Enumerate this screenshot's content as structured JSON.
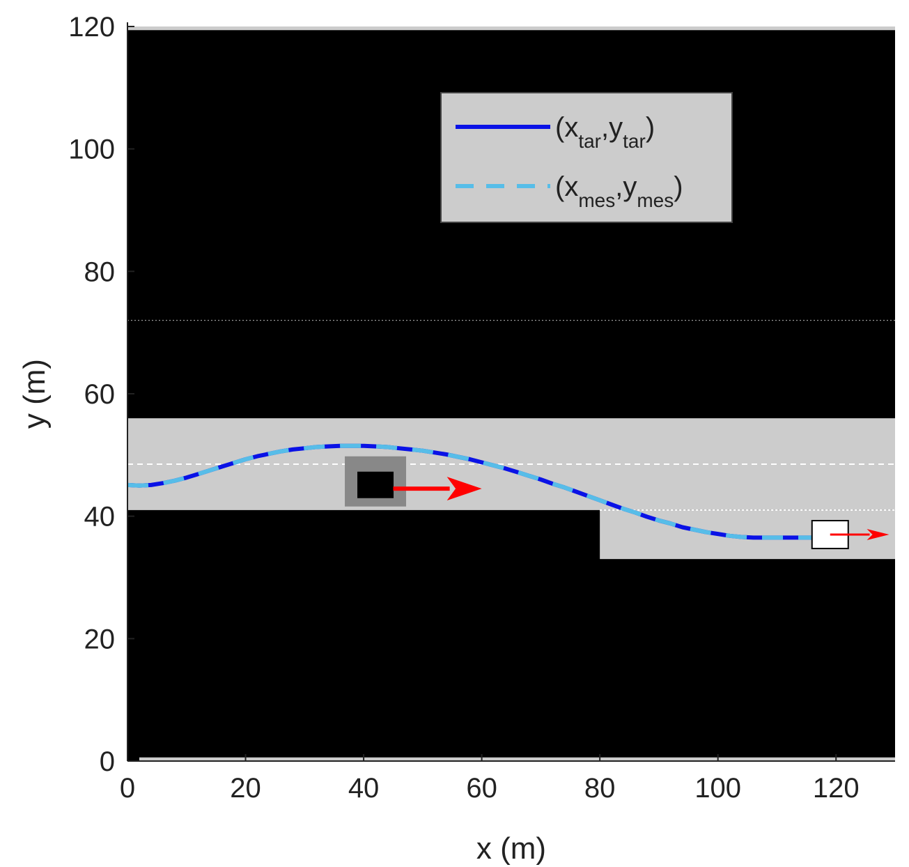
{
  "chart_data": {
    "type": "line",
    "xlabel": "x (m)",
    "ylabel": "y (m)",
    "xlim": [
      0,
      130
    ],
    "ylim": [
      0,
      120
    ],
    "xticks": [
      0,
      20,
      40,
      60,
      80,
      100,
      120
    ],
    "yticks": [
      0,
      20,
      40,
      60,
      80,
      100,
      120
    ],
    "grid": false,
    "legend_position": "top-right",
    "legend": [
      {
        "name": "(x_tar,y_tar)",
        "base1": "(x",
        "sub1": "tar",
        "sep": ",y",
        "sub2": "tar",
        "close": ")",
        "color": "#0a12e6",
        "style": "solid"
      },
      {
        "name": "(x_mes,y_mes)",
        "base1": "(x",
        "sub1": "mes",
        "sep": ",y",
        "sub2": "mes",
        "close": ")",
        "color": "#57bde8",
        "style": "dashed"
      }
    ],
    "colors": {
      "background": "#000000",
      "road": "#cccccc",
      "vehicle_shadow": "#888888",
      "arrow": "#ff0000",
      "target_line": "#0a12e6",
      "measured_line": "#57bde8"
    },
    "road_regions": [
      {
        "name": "main-lane",
        "x": [
          0,
          130
        ],
        "y": [
          41,
          56
        ]
      },
      {
        "name": "exit-lane",
        "x": [
          80,
          130
        ],
        "y": [
          33,
          41
        ]
      },
      {
        "name": "top-strip",
        "x": [
          0,
          130
        ],
        "y": [
          119.4,
          120
        ]
      },
      {
        "name": "bottom-strip",
        "x": [
          2,
          130
        ],
        "y": [
          0,
          0.6
        ]
      }
    ],
    "lane_markings": [
      {
        "name": "top-lane-line",
        "x": [
          0,
          130
        ],
        "y": 72,
        "style": "fine-dotted"
      },
      {
        "name": "center-lane-line",
        "x": [
          0,
          130
        ],
        "y": 48.5,
        "style": "dashed"
      },
      {
        "name": "exit-lane-line",
        "x": [
          80,
          130
        ],
        "y": 41,
        "style": "dotted"
      }
    ],
    "trajectory": {
      "x": [
        0,
        2,
        4,
        6,
        8,
        10,
        12,
        14,
        16,
        18,
        20,
        22,
        24,
        26,
        28,
        30,
        32,
        34,
        36,
        38,
        40,
        42,
        44,
        46,
        48,
        50,
        52,
        54,
        56,
        58,
        60,
        62,
        64,
        66,
        68,
        70,
        72,
        74,
        76,
        78,
        80,
        82,
        84,
        86,
        88,
        90,
        92,
        94,
        96,
        98,
        100,
        102,
        104,
        106,
        108,
        110,
        112,
        114,
        116,
        118
      ],
      "y": [
        45.1,
        45.0,
        45.1,
        45.4,
        45.8,
        46.3,
        46.9,
        47.5,
        48.1,
        48.7,
        49.3,
        49.8,
        50.2,
        50.6,
        50.9,
        51.1,
        51.3,
        51.4,
        51.5,
        51.5,
        51.5,
        51.4,
        51.3,
        51.1,
        50.9,
        50.7,
        50.4,
        50.1,
        49.7,
        49.3,
        48.8,
        48.3,
        47.8,
        47.2,
        46.6,
        46.0,
        45.3,
        44.7,
        44.0,
        43.3,
        42.6,
        41.9,
        41.2,
        40.6,
        39.9,
        39.3,
        38.8,
        38.2,
        37.8,
        37.4,
        37.1,
        36.8,
        36.6,
        36.5,
        36.5,
        36.5,
        36.5,
        36.5,
        36.5,
        36.5
      ]
    },
    "vehicles": [
      {
        "name": "obstacle-vehicle",
        "x": 42,
        "y": 45,
        "fill": "#000000",
        "shadow": true
      },
      {
        "name": "ego-vehicle",
        "x": 119,
        "y": 37,
        "fill": "#ffffff",
        "shadow": false
      }
    ],
    "velocity_arrows": [
      {
        "name": "obstacle-velocity-arrow",
        "x": [
          45,
          60
        ],
        "y": [
          44.5,
          44.5
        ]
      },
      {
        "name": "ego-velocity-arrow",
        "x": [
          119,
          129
        ],
        "y": [
          37,
          37
        ]
      }
    ]
  }
}
